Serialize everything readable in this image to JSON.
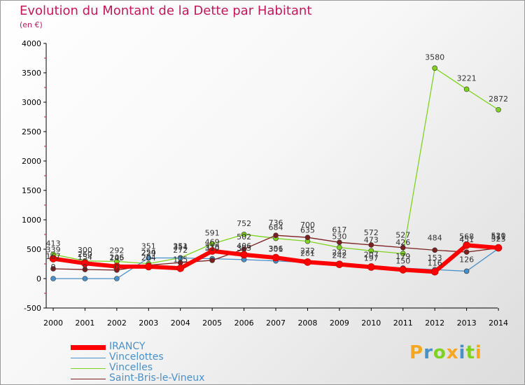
{
  "title": "Evolution du Montant de la Dette par Habitant",
  "unit": "(en €)",
  "logo": {
    "text": "Proxiti"
  },
  "chart_data": {
    "type": "line",
    "x": [
      2000,
      2001,
      2002,
      2003,
      2004,
      2005,
      2006,
      2007,
      2008,
      2009,
      2010,
      2011,
      2012,
      2013,
      2014
    ],
    "ylim": [
      -500,
      4000
    ],
    "yticks": [
      -500,
      0,
      500,
      1000,
      1500,
      2000,
      2500,
      3000,
      3500,
      4000
    ],
    "grid": false,
    "legend": "bottom-left",
    "series": [
      {
        "name": "IRANCY",
        "color": "#ff0000",
        "values": [
          339,
          260,
          206,
          204,
          175,
          469,
          406,
          356,
          281,
          242,
          197,
          150,
          116,
          568,
          523
        ],
        "labels": [
          "339",
          "260",
          "206",
          "204",
          "175",
          "469",
          "406",
          "356",
          "281",
          "242",
          "197",
          "150",
          "116",
          "568",
          "523"
        ]
      },
      {
        "name": "Vincelottes",
        "color": "#4a90c8",
        "values": [
          0,
          0,
          0,
          351,
          351,
          338,
          323,
          301,
          272,
          242,
          207,
          179,
          153,
          126,
          511
        ],
        "labels": [
          "0",
          "0",
          "0",
          "351",
          "351",
          "338",
          "323",
          "301",
          "272",
          "242",
          "207",
          "179",
          "153",
          "126",
          "511"
        ]
      },
      {
        "name": "Vincelles",
        "color": "#7ed321",
        "values": [
          413,
          300,
          292,
          254,
          354,
          591,
          752,
          684,
          635,
          530,
          473,
          426,
          3580,
          3221,
          2872
        ],
        "labels": [
          "413",
          "300",
          "292",
          "254",
          "354",
          "591",
          "752",
          "684",
          "635",
          "530",
          "473",
          "426",
          "3580",
          "3221",
          "2872"
        ]
      },
      {
        "name": "Saint-Bris-le-Vineux",
        "color": "#7b1f1f",
        "values": [
          167,
          154,
          145,
          229,
          272,
          310,
          502,
          736,
          700,
          617,
          572,
          527,
          484,
          451,
          520
        ],
        "labels": [
          "167",
          "154",
          "145",
          "229",
          "272",
          "310",
          "502",
          "736",
          "700",
          "617",
          "572",
          "527",
          "484",
          "451",
          "520"
        ]
      }
    ]
  }
}
